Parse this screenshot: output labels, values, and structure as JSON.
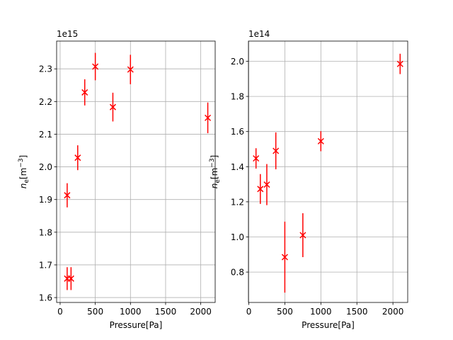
{
  "colors": {
    "series": "#ff0000",
    "grid": "#b0b0b0"
  },
  "chart_data": [
    {
      "type": "scatter",
      "title": "",
      "xlabel": "Pressure[Pa]",
      "ylabel_main": "n",
      "ylabel_sub": "e",
      "ylabel_unit": "[m",
      "ylabel_exp": "−3",
      "ylabel_close": "]",
      "offset_text": "1e15",
      "grid": true,
      "marker": "x",
      "xlim": [
        -50,
        2205
      ],
      "ylim": [
        1.585,
        2.385
      ],
      "xticks": [
        0,
        500,
        1000,
        1500,
        2000
      ],
      "xtick_labels": [
        "0",
        "500",
        "1000",
        "1500",
        "2000"
      ],
      "yticks": [
        1.6,
        1.7,
        1.8,
        1.9,
        2.0,
        2.1,
        2.2,
        2.3
      ],
      "ytick_labels": [
        "1.6",
        "1.7",
        "1.8",
        "1.9",
        "2.0",
        "2.1",
        "2.2",
        "2.3"
      ],
      "points": [
        {
          "x": 100,
          "y": 1.658,
          "err": 0.035
        },
        {
          "x": 155,
          "y": 1.658,
          "err": 0.035
        },
        {
          "x": 100,
          "y": 1.913,
          "err": 0.037
        },
        {
          "x": 250,
          "y": 2.028,
          "err": 0.038
        },
        {
          "x": 350,
          "y": 2.228,
          "err": 0.04
        },
        {
          "x": 500,
          "y": 2.307,
          "err": 0.042
        },
        {
          "x": 750,
          "y": 2.183,
          "err": 0.044
        },
        {
          "x": 1000,
          "y": 2.298,
          "err": 0.045
        },
        {
          "x": 2100,
          "y": 2.15,
          "err": 0.047
        }
      ]
    },
    {
      "type": "scatter",
      "title": "",
      "xlabel": "Pressure[Pa]",
      "ylabel_main": "n",
      "ylabel_sub": "e",
      "ylabel_unit": "[m",
      "ylabel_exp": "−3",
      "ylabel_close": "]",
      "offset_text": "1e14",
      "grid": true,
      "marker": "x",
      "xlim": [
        -5,
        2205
      ],
      "ylim": [
        0.627,
        2.115
      ],
      "xticks": [
        0,
        500,
        1000,
        1500,
        2000
      ],
      "xtick_labels": [
        "0",
        "500",
        "1000",
        "1500",
        "2000"
      ],
      "yticks": [
        0.8,
        1.0,
        1.2,
        1.4,
        1.6,
        1.8,
        2.0
      ],
      "ytick_labels": [
        "0.8",
        "1.0",
        "1.2",
        "1.4",
        "1.6",
        "1.8",
        "2.0"
      ],
      "points": [
        {
          "x": 100,
          "y": 1.447,
          "err": 0.058
        },
        {
          "x": 160,
          "y": 1.273,
          "err": 0.085
        },
        {
          "x": 250,
          "y": 1.298,
          "err": 0.117
        },
        {
          "x": 375,
          "y": 1.49,
          "err": 0.105
        },
        {
          "x": 500,
          "y": 0.885,
          "err": 0.202
        },
        {
          "x": 750,
          "y": 1.01,
          "err": 0.125
        },
        {
          "x": 1000,
          "y": 1.545,
          "err": 0.057
        },
        {
          "x": 2100,
          "y": 1.985,
          "err": 0.058
        }
      ]
    }
  ]
}
